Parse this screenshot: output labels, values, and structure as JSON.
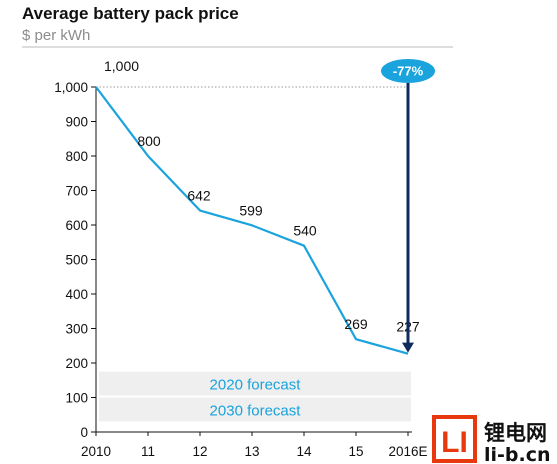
{
  "chart_data": {
    "type": "line",
    "title": "Average battery pack price",
    "subtitle": "$ per kWh",
    "categories": [
      "2010",
      "11",
      "12",
      "13",
      "14",
      "15",
      "2016E"
    ],
    "values": [
      1000,
      800,
      642,
      599,
      540,
      269,
      227
    ],
    "value_labels": [
      "1,000",
      "800",
      "642",
      "599",
      "540",
      "269",
      "227"
    ],
    "yticks": [
      0,
      100,
      200,
      300,
      400,
      500,
      600,
      700,
      800,
      900,
      1000
    ],
    "ytick_labels": [
      "0",
      "100",
      "200",
      "300",
      "400",
      "500",
      "600",
      "700",
      "800",
      "900",
      "1,000"
    ],
    "ylim": [
      0,
      1000
    ],
    "grid": false,
    "line_color": "#1aa3dc",
    "annotations": {
      "change_badge": "-77%",
      "forecast_bands": [
        {
          "label": "2020 forecast",
          "range": [
            100,
            175
          ]
        },
        {
          "label": "2030 forecast",
          "range": [
            25,
            100
          ]
        }
      ]
    }
  },
  "watermark": {
    "logo_text": "LI",
    "text_cn": "锂电网",
    "text_url": "li-b.cn"
  }
}
